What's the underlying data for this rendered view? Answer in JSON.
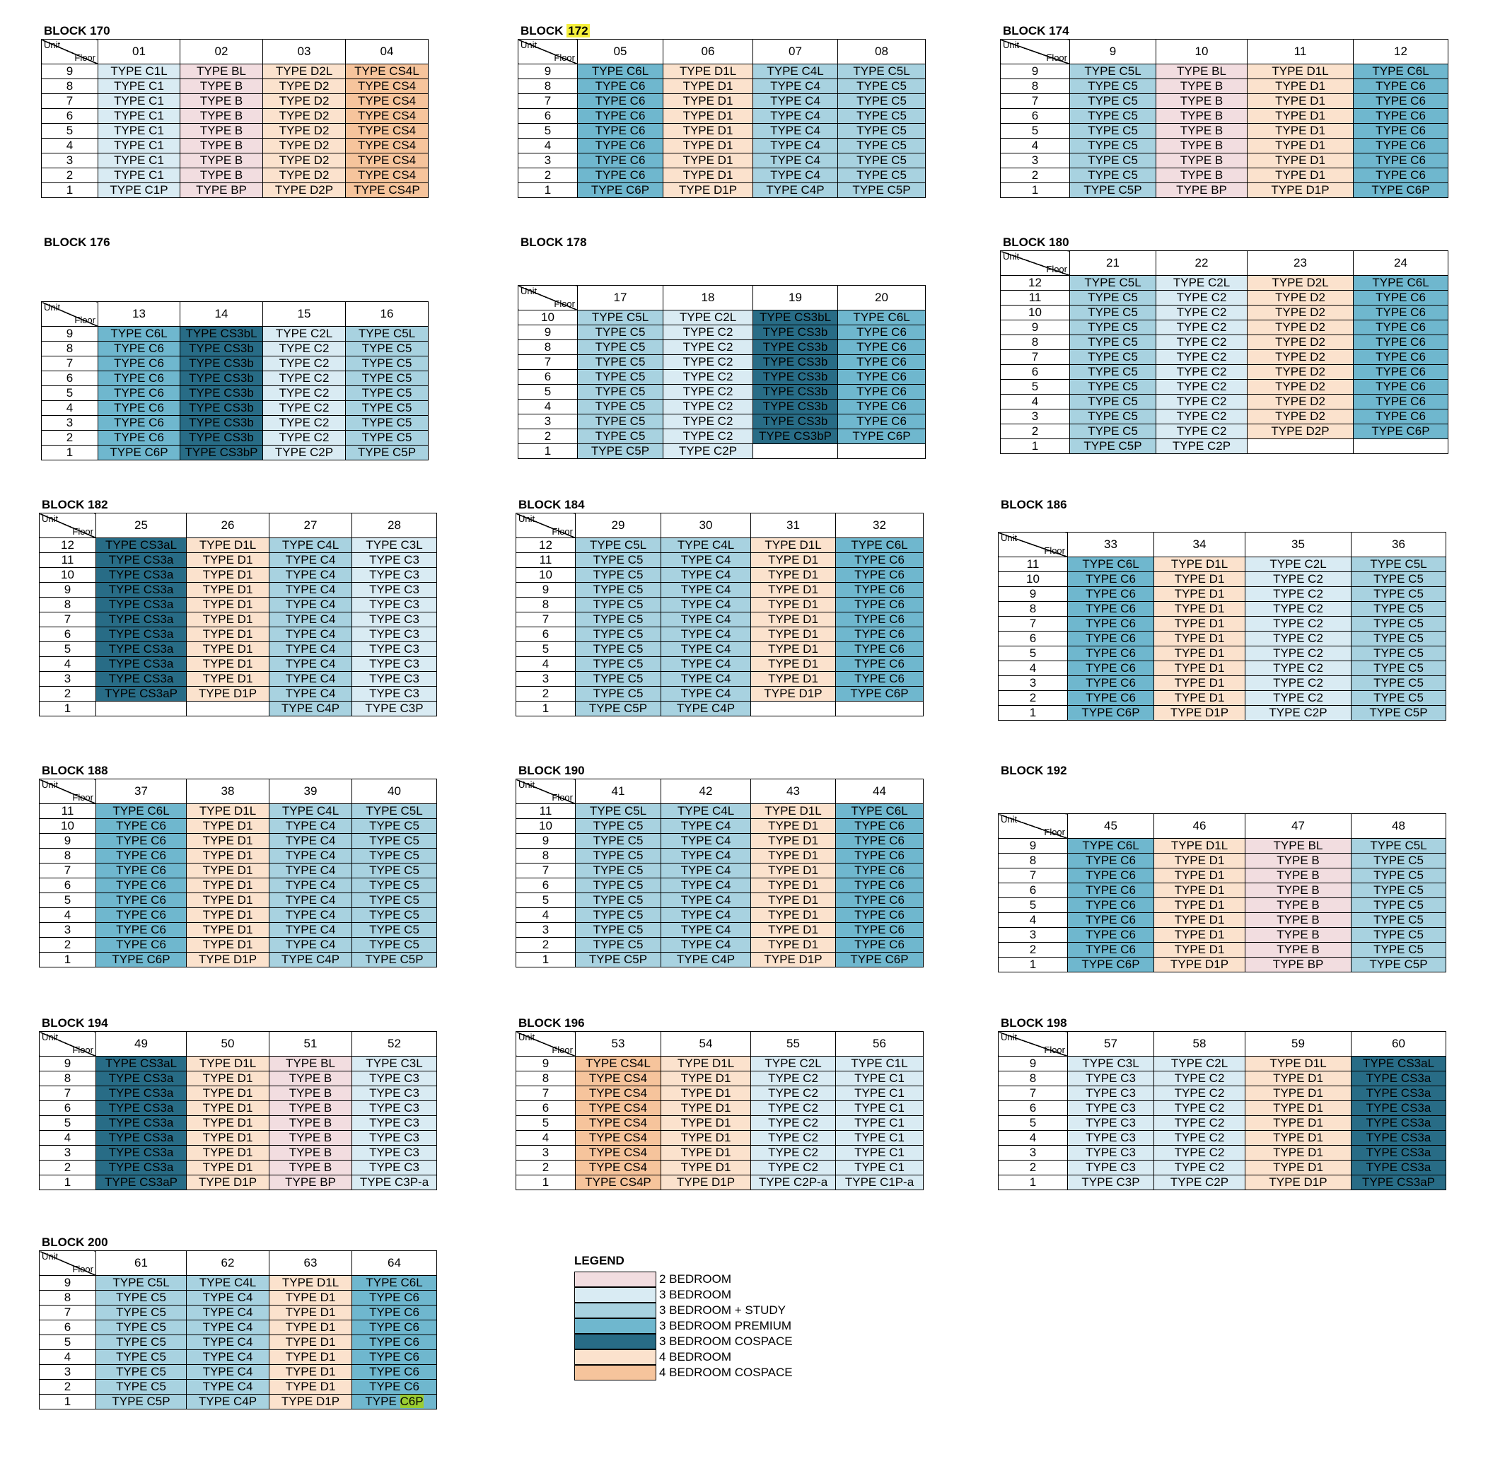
{
  "headers": {
    "unit": "Unit",
    "floor": "Floor"
  },
  "colors": {
    "two_bedroom": "#f2dde0",
    "three_bedroom": "#d9ebf3",
    "three_bedroom_study": "#a8d2e0",
    "three_bedroom_premium": "#6fb7ce",
    "three_bedroom_cospace": "#286c86",
    "four_bedroom": "#fbe2cd",
    "four_bedroom_cospace": "#f6c49c"
  },
  "legend": {
    "title": "LEGEND",
    "items": [
      {
        "key": "two_bedroom",
        "label": "2 BEDROOM"
      },
      {
        "key": "three_bedroom",
        "label": "3 BEDROOM"
      },
      {
        "key": "three_bedroom_study",
        "label": "3 BEDROOM + STUDY"
      },
      {
        "key": "three_bedroom_premium",
        "label": "3 BEDROOM PREMIUM"
      },
      {
        "key": "three_bedroom_cospace",
        "label": "3 BEDROOM COSPACE"
      },
      {
        "key": "four_bedroom",
        "label": "4 BEDROOM"
      },
      {
        "key": "four_bedroom_cospace",
        "label": "4 BEDROOM COSPACE"
      }
    ]
  },
  "blocks": [
    {
      "label": "BLOCK ",
      "number": "170",
      "units": [
        "01",
        "02",
        "03",
        "04"
      ],
      "floors": [
        "9",
        "8",
        "7",
        "6",
        "5",
        "4",
        "3",
        "2",
        "1"
      ],
      "columns": [
        {
          "cat": "three_bedroom",
          "top": "TYPE C1L",
          "mid": "TYPE C1",
          "bottom": "TYPE C1P"
        },
        {
          "cat": "two_bedroom",
          "top": "TYPE BL",
          "mid": "TYPE B",
          "bottom": "TYPE BP"
        },
        {
          "cat": "four_bedroom",
          "top": "TYPE D2L",
          "mid": "TYPE D2",
          "bottom": "TYPE D2P"
        },
        {
          "cat": "four_bedroom_cospace",
          "top": "TYPE CS4L",
          "mid": "TYPE CS4",
          "bottom": "TYPE CS4P"
        }
      ]
    },
    {
      "label": "BLOCK ",
      "number": "172",
      "highlight_number": true,
      "units": [
        "05",
        "06",
        "07",
        "08"
      ],
      "floors": [
        "9",
        "8",
        "7",
        "6",
        "5",
        "4",
        "3",
        "2",
        "1"
      ],
      "columns": [
        {
          "cat": "three_bedroom_premium",
          "top": "TYPE C6L",
          "mid": "TYPE C6",
          "bottom": "TYPE C6P"
        },
        {
          "cat": "four_bedroom",
          "top": "TYPE D1L",
          "mid": "TYPE D1",
          "bottom": "TYPE D1P"
        },
        {
          "cat": "three_bedroom_study",
          "top": "TYPE C4L",
          "mid": "TYPE C4",
          "bottom": "TYPE C4P"
        },
        {
          "cat": "three_bedroom_study",
          "top": "TYPE C5L",
          "mid": "TYPE C5",
          "bottom": "TYPE C5P"
        }
      ]
    },
    {
      "label": "BLOCK ",
      "number": "174",
      "units": [
        "9",
        "10",
        "11",
        "12"
      ],
      "floors": [
        "9",
        "8",
        "7",
        "6",
        "5",
        "4",
        "3",
        "2",
        "1"
      ],
      "columns": [
        {
          "cat": "three_bedroom_study",
          "top": "TYPE C5L",
          "mid": "TYPE C5",
          "bottom": "TYPE C5P"
        },
        {
          "cat": "two_bedroom",
          "top": "TYPE BL",
          "mid": "TYPE B",
          "bottom": "TYPE BP"
        },
        {
          "cat": "four_bedroom",
          "top": "TYPE D1L",
          "mid": "TYPE D1",
          "bottom": "TYPE D1P"
        },
        {
          "cat": "three_bedroom_premium",
          "top": "TYPE C6L",
          "mid": "TYPE C6",
          "bottom": "TYPE C6P"
        }
      ]
    },
    {
      "label": "BLOCK ",
      "number": "176",
      "units": [
        "13",
        "14",
        "15",
        "16"
      ],
      "floors": [
        "9",
        "8",
        "7",
        "6",
        "5",
        "4",
        "3",
        "2",
        "1"
      ],
      "columns": [
        {
          "cat": "three_bedroom_premium",
          "top": "TYPE C6L",
          "mid": "TYPE C6",
          "bottom": "TYPE C6P"
        },
        {
          "cat": "three_bedroom_cospace",
          "top": "TYPE CS3bL",
          "mid": "TYPE CS3b",
          "bottom": "TYPE CS3bP"
        },
        {
          "cat": "three_bedroom",
          "top": "TYPE C2L",
          "mid": "TYPE C2",
          "bottom": "TYPE C2P"
        },
        {
          "cat": "three_bedroom_study",
          "top": "TYPE C5L",
          "mid": "TYPE C5",
          "bottom": "TYPE C5P"
        }
      ]
    },
    {
      "label": "BLOCK ",
      "number": "178",
      "units": [
        "17",
        "18",
        "19",
        "20"
      ],
      "floors": [
        "10",
        "9",
        "8",
        "7",
        "6",
        "5",
        "4",
        "3",
        "2",
        "1"
      ],
      "columns": [
        {
          "cat": "three_bedroom_study",
          "top": "TYPE C5L",
          "mid": "TYPE C5",
          "bottom": "TYPE C5P"
        },
        {
          "cat": "three_bedroom",
          "top": "TYPE C2L",
          "mid": "TYPE C2",
          "bottom": "TYPE C2P"
        },
        {
          "cat": "three_bedroom_cospace",
          "top": "TYPE CS3bL",
          "mid": "TYPE CS3b",
          "p": "TYPE CS3bP",
          "bottom": ""
        },
        {
          "cat": "three_bedroom_premium",
          "top": "TYPE C6L",
          "mid": "TYPE C6",
          "p": "TYPE C6P",
          "bottom": ""
        }
      ]
    },
    {
      "label": "BLOCK ",
      "number": "180",
      "units": [
        "21",
        "22",
        "23",
        "24"
      ],
      "floors": [
        "12",
        "11",
        "10",
        "9",
        "8",
        "7",
        "6",
        "5",
        "4",
        "3",
        "2",
        "1"
      ],
      "columns": [
        {
          "cat": "three_bedroom_study",
          "top": "TYPE C5L",
          "mid": "TYPE C5",
          "bottom": "TYPE C5P"
        },
        {
          "cat": "three_bedroom",
          "top": "TYPE C2L",
          "mid": "TYPE C2",
          "bottom": "TYPE C2P"
        },
        {
          "cat": "four_bedroom",
          "top": "TYPE D2L",
          "mid": "TYPE D2",
          "p": "TYPE D2P",
          "bottom": ""
        },
        {
          "cat": "three_bedroom_premium",
          "top": "TYPE C6L",
          "mid": "TYPE C6",
          "p": "TYPE C6P",
          "bottom": ""
        }
      ]
    },
    {
      "label": "BLOCK ",
      "number": "182",
      "units": [
        "25",
        "26",
        "27",
        "28"
      ],
      "floors": [
        "12",
        "11",
        "10",
        "9",
        "8",
        "7",
        "6",
        "5",
        "4",
        "3",
        "2",
        "1"
      ],
      "columns": [
        {
          "cat": "three_bedroom_cospace",
          "top": "TYPE CS3aL",
          "mid": "TYPE CS3a",
          "p": "TYPE CS3aP",
          "bottom": ""
        },
        {
          "cat": "four_bedroom",
          "top": "TYPE D1L",
          "mid": "TYPE D1",
          "p": "TYPE D1P",
          "bottom": ""
        },
        {
          "cat": "three_bedroom_study",
          "top": "TYPE C4L",
          "mid": "TYPE C4",
          "bottom": "TYPE C4P"
        },
        {
          "cat": "three_bedroom",
          "top": "TYPE C3L",
          "mid": "TYPE C3",
          "bottom": "TYPE C3P"
        }
      ]
    },
    {
      "label": "BLOCK ",
      "number": "184",
      "units": [
        "29",
        "30",
        "31",
        "32"
      ],
      "floors": [
        "12",
        "11",
        "10",
        "9",
        "8",
        "7",
        "6",
        "5",
        "4",
        "3",
        "2",
        "1"
      ],
      "columns": [
        {
          "cat": "three_bedroom_study",
          "top": "TYPE C5L",
          "mid": "TYPE C5",
          "bottom": "TYPE C5P"
        },
        {
          "cat": "three_bedroom_study",
          "top": "TYPE C4L",
          "mid": "TYPE C4",
          "bottom": "TYPE C4P"
        },
        {
          "cat": "four_bedroom",
          "top": "TYPE D1L",
          "mid": "TYPE D1",
          "p": "TYPE D1P",
          "bottom": ""
        },
        {
          "cat": "three_bedroom_premium",
          "top": "TYPE C6L",
          "mid": "TYPE C6",
          "p": "TYPE C6P",
          "bottom": ""
        }
      ]
    },
    {
      "label": "BLOCK ",
      "number": "186",
      "units": [
        "33",
        "34",
        "35",
        "36"
      ],
      "floors": [
        "11",
        "10",
        "9",
        "8",
        "7",
        "6",
        "5",
        "4",
        "3",
        "2",
        "1"
      ],
      "columns": [
        {
          "cat": "three_bedroom_premium",
          "top": "TYPE C6L",
          "mid": "TYPE C6",
          "bottom": "TYPE C6P"
        },
        {
          "cat": "four_bedroom",
          "top": "TYPE D1L",
          "mid": "TYPE D1",
          "bottom": "TYPE D1P"
        },
        {
          "cat": "three_bedroom",
          "top": "TYPE C2L",
          "mid": "TYPE C2",
          "bottom": "TYPE C2P"
        },
        {
          "cat": "three_bedroom_study",
          "top": "TYPE C5L",
          "mid": "TYPE C5",
          "bottom": "TYPE C5P"
        }
      ]
    },
    {
      "label": "BLOCK ",
      "number": "188",
      "units": [
        "37",
        "38",
        "39",
        "40"
      ],
      "floors": [
        "11",
        "10",
        "9",
        "8",
        "7",
        "6",
        "5",
        "4",
        "3",
        "2",
        "1"
      ],
      "columns": [
        {
          "cat": "three_bedroom_premium",
          "top": "TYPE C6L",
          "mid": "TYPE C6",
          "bottom": "TYPE C6P"
        },
        {
          "cat": "four_bedroom",
          "top": "TYPE D1L",
          "mid": "TYPE D1",
          "bottom": "TYPE D1P"
        },
        {
          "cat": "three_bedroom_study",
          "top": "TYPE C4L",
          "mid": "TYPE C4",
          "bottom": "TYPE C4P"
        },
        {
          "cat": "three_bedroom_study",
          "top": "TYPE C5L",
          "mid": "TYPE C5",
          "bottom": "TYPE C5P"
        }
      ]
    },
    {
      "label": "BLOCK ",
      "number": "190",
      "units": [
        "41",
        "42",
        "43",
        "44"
      ],
      "floors": [
        "11",
        "10",
        "9",
        "8",
        "7",
        "6",
        "5",
        "4",
        "3",
        "2",
        "1"
      ],
      "columns": [
        {
          "cat": "three_bedroom_study",
          "top": "TYPE C5L",
          "mid": "TYPE C5",
          "bottom": "TYPE C5P"
        },
        {
          "cat": "three_bedroom_study",
          "top": "TYPE C4L",
          "mid": "TYPE C4",
          "bottom": "TYPE C4P"
        },
        {
          "cat": "four_bedroom",
          "top": "TYPE D1L",
          "mid": "TYPE D1",
          "bottom": "TYPE D1P"
        },
        {
          "cat": "three_bedroom_premium",
          "top": "TYPE C6L",
          "mid": "TYPE C6",
          "bottom": "TYPE C6P"
        }
      ]
    },
    {
      "label": "BLOCK ",
      "number": "192",
      "units": [
        "45",
        "46",
        "47",
        "48"
      ],
      "floors": [
        "9",
        "8",
        "7",
        "6",
        "5",
        "4",
        "3",
        "2",
        "1"
      ],
      "columns": [
        {
          "cat": "three_bedroom_premium",
          "top": "TYPE C6L",
          "mid": "TYPE C6",
          "bottom": "TYPE C6P"
        },
        {
          "cat": "four_bedroom",
          "top": "TYPE D1L",
          "mid": "TYPE D1",
          "bottom": "TYPE D1P"
        },
        {
          "cat": "two_bedroom",
          "top": "TYPE BL",
          "mid": "TYPE B",
          "bottom": "TYPE BP"
        },
        {
          "cat": "three_bedroom_study",
          "top": "TYPE C5L",
          "mid": "TYPE C5",
          "bottom": "TYPE C5P"
        }
      ]
    },
    {
      "label": "BLOCK ",
      "number": "194",
      "units": [
        "49",
        "50",
        "51",
        "52"
      ],
      "floors": [
        "9",
        "8",
        "7",
        "6",
        "5",
        "4",
        "3",
        "2",
        "1"
      ],
      "columns": [
        {
          "cat": "three_bedroom_cospace",
          "top": "TYPE CS3aL",
          "mid": "TYPE CS3a",
          "bottom": "TYPE CS3aP"
        },
        {
          "cat": "four_bedroom",
          "top": "TYPE D1L",
          "mid": "TYPE D1",
          "bottom": "TYPE D1P"
        },
        {
          "cat": "two_bedroom",
          "top": "TYPE BL",
          "mid": "TYPE B",
          "bottom": "TYPE BP"
        },
        {
          "cat": "three_bedroom",
          "top": "TYPE C3L",
          "mid": "TYPE C3",
          "bottom": "TYPE C3P-a"
        }
      ]
    },
    {
      "label": "BLOCK ",
      "number": "196",
      "units": [
        "53",
        "54",
        "55",
        "56"
      ],
      "floors": [
        "9",
        "8",
        "7",
        "6",
        "5",
        "4",
        "3",
        "2",
        "1"
      ],
      "columns": [
        {
          "cat": "four_bedroom_cospace",
          "top": "TYPE CS4L",
          "mid": "TYPE CS4",
          "bottom": "TYPE CS4P"
        },
        {
          "cat": "four_bedroom",
          "top": "TYPE D1L",
          "mid": "TYPE D1",
          "bottom": "TYPE D1P"
        },
        {
          "cat": "three_bedroom",
          "top": "TYPE C2L",
          "mid": "TYPE C2",
          "bottom": "TYPE C2P-a"
        },
        {
          "cat": "three_bedroom",
          "top": "TYPE C1L",
          "mid": "TYPE C1",
          "bottom": "TYPE C1P-a"
        }
      ]
    },
    {
      "label": "BLOCK ",
      "number": "198",
      "units": [
        "57",
        "58",
        "59",
        "60"
      ],
      "floors": [
        "9",
        "8",
        "7",
        "6",
        "5",
        "4",
        "3",
        "2",
        "1"
      ],
      "columns": [
        {
          "cat": "three_bedroom",
          "top": "TYPE C3L",
          "mid": "TYPE C3",
          "bottom": "TYPE C3P"
        },
        {
          "cat": "three_bedroom",
          "top": "TYPE C2L",
          "mid": "TYPE C2",
          "bottom": "TYPE C2P"
        },
        {
          "cat": "four_bedroom",
          "top": "TYPE D1L",
          "mid": "TYPE D1",
          "bottom": "TYPE D1P"
        },
        {
          "cat": "three_bedroom_cospace",
          "top": "TYPE CS3aL",
          "mid": "TYPE CS3a",
          "bottom": "TYPE CS3aP"
        }
      ]
    },
    {
      "label": "BLOCK ",
      "number": "200",
      "units": [
        "61",
        "62",
        "63",
        "64"
      ],
      "floors": [
        "9",
        "8",
        "7",
        "6",
        "5",
        "4",
        "3",
        "2",
        "1"
      ],
      "columns": [
        {
          "cat": "three_bedroom_study",
          "top": "TYPE C5L",
          "mid": "TYPE C5",
          "bottom": "TYPE C5P"
        },
        {
          "cat": "three_bedroom_study",
          "top": "TYPE C4L",
          "mid": "TYPE C4",
          "bottom": "TYPE C4P"
        },
        {
          "cat": "four_bedroom",
          "top": "TYPE D1L",
          "mid": "TYPE D1",
          "bottom": "TYPE D1P"
        },
        {
          "cat": "three_bedroom_premium",
          "top": "TYPE C6L",
          "mid": "TYPE C6",
          "bottom": "TYPE C6P",
          "bottom_highlight": "C6P"
        }
      ]
    }
  ]
}
